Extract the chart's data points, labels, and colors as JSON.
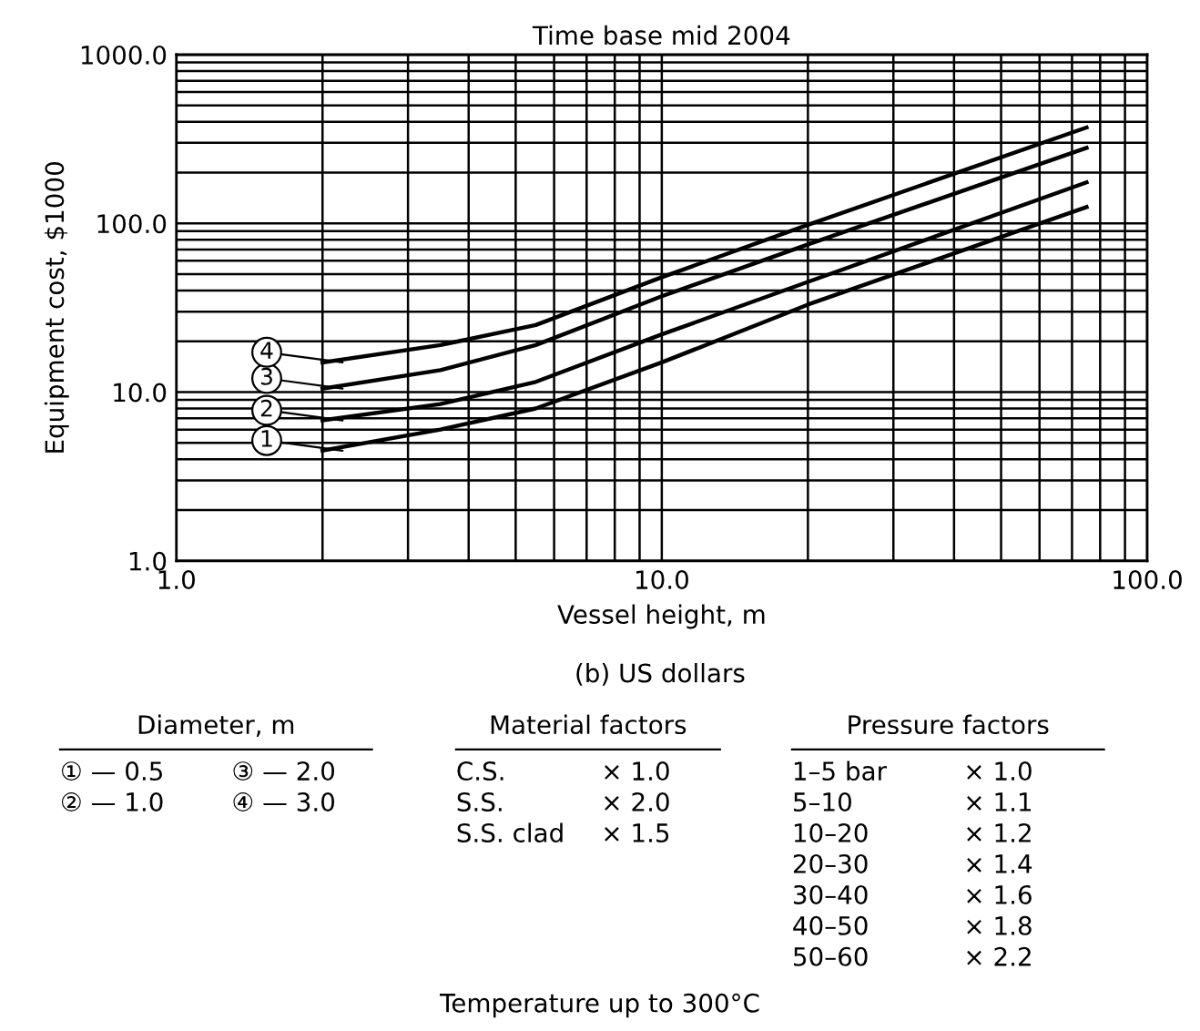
{
  "chart_data": {
    "type": "line",
    "title": "Time base mid 2004",
    "xlabel": "Vessel height, m",
    "ylabel": "Equipment cost, $1000",
    "log": "xy",
    "grid": true,
    "legend": "left",
    "marker": "none",
    "line_style": "solid",
    "xlim": [
      1,
      100
    ],
    "ylim": [
      1,
      1000
    ],
    "xticks": [
      {
        "value": 1,
        "label": "1.0"
      },
      {
        "value": 10,
        "label": "10.0"
      },
      {
        "value": 100,
        "label": "100.0"
      }
    ],
    "yticks": [
      {
        "value": 1,
        "label": "1.0"
      },
      {
        "value": 10,
        "label": "10.0"
      },
      {
        "value": 100,
        "label": "100.0"
      },
      {
        "value": 1000,
        "label": "1000.0"
      }
    ],
    "x": [
      2,
      3.5,
      5.5,
      10,
      20,
      75
    ],
    "series": [
      {
        "name": "1",
        "color": "#000000",
        "values": [
          4.5,
          6,
          8,
          15,
          33,
          125
        ]
      },
      {
        "name": "2",
        "color": "#000000",
        "values": [
          6.8,
          8.5,
          11.5,
          22,
          45,
          175
        ]
      },
      {
        "name": "3",
        "color": "#000000",
        "values": [
          10.5,
          13.5,
          19,
          37,
          75,
          280
        ]
      },
      {
        "name": "4",
        "color": "#000000",
        "values": [
          15,
          19,
          25,
          48,
          98,
          370
        ]
      }
    ],
    "annotations": [
      "(b) US dollars",
      "Diameter, m\n① — 0.5\t③ — 2.0\n② — 1.0\t④ — 3.0",
      "Material factors\nC.S.\t× 1.0\nS.S.\t× 2.0\nS.S. clad\t× 1.5",
      "Pressure factors\n1–5 bar\t× 1.0\n5–10\t× 1.1\n10–20\t× 1.2\n20–30\t× 1.4\n30–40\t× 1.6\n40–50\t× 1.8\n50–60\t× 2.2",
      "Temperature up to 300°C"
    ]
  }
}
